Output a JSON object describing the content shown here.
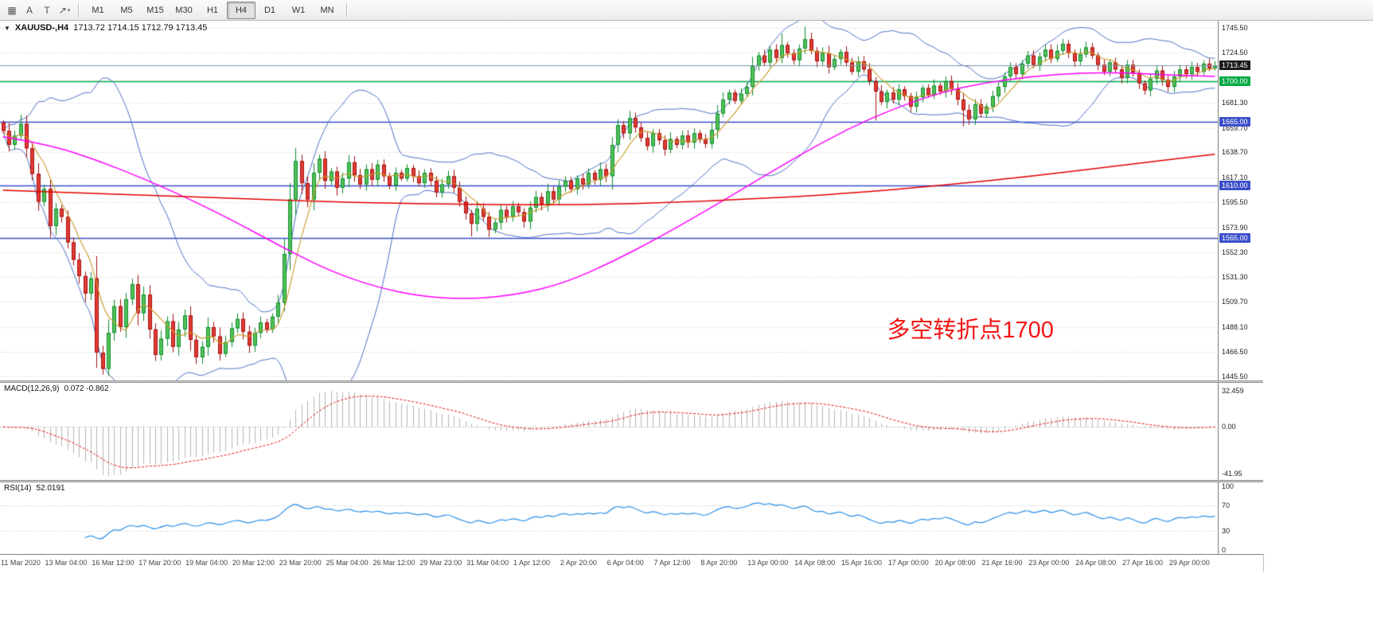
{
  "toolbar": {
    "icons": [
      {
        "name": "chart-windows-icon",
        "glyph": "▦"
      },
      {
        "name": "font-tool-icon",
        "glyph": "A"
      },
      {
        "name": "text-cursor-icon",
        "glyph": "T"
      },
      {
        "name": "line-style-icon",
        "glyph": "↗",
        "caret": "▾"
      }
    ],
    "timeframes": [
      {
        "label": "M1",
        "active": false
      },
      {
        "label": "M5",
        "active": false
      },
      {
        "label": "M15",
        "active": false
      },
      {
        "label": "M30",
        "active": false
      },
      {
        "label": "H1",
        "active": false
      },
      {
        "label": "H4",
        "active": true
      },
      {
        "label": "D1",
        "active": false
      },
      {
        "label": "W1",
        "active": false
      },
      {
        "label": "MN",
        "active": false
      }
    ]
  },
  "chart": {
    "dropdown_glyph": "▼",
    "title": "XAUUSD-,H4",
    "ohlc": "1713.72 1714.15 1712.79 1713.45",
    "annotation": {
      "text": "多空转折点1700",
      "color": "#f21515",
      "x_index": 151,
      "price": 1491
    },
    "price_axis": {
      "labels": [
        {
          "text": "1745.50",
          "price": 1745.5
        },
        {
          "text": "1724.50",
          "price": 1724.5
        },
        {
          "text": "1681.30",
          "price": 1681.3
        },
        {
          "text": "1659.70",
          "price": 1659.7
        },
        {
          "text": "1638.70",
          "price": 1638.7
        },
        {
          "text": "1617.10",
          "price": 1617.1
        },
        {
          "text": "1595.50",
          "price": 1595.5
        },
        {
          "text": "1573.90",
          "price": 1573.9
        },
        {
          "text": "1552.30",
          "price": 1552.3
        },
        {
          "text": "1531.30",
          "price": 1531.3
        },
        {
          "text": "1509.70",
          "price": 1509.7
        },
        {
          "text": "1488.10",
          "price": 1488.1
        },
        {
          "text": "1466.50",
          "price": 1466.5
        },
        {
          "text": "1445.50",
          "price": 1445.5
        }
      ],
      "badges": [
        {
          "text": "1713.45",
          "price": 1713.45,
          "bg": "#1a1a1a",
          "fg": "#ffffff",
          "type": "bid"
        },
        {
          "text": "1700.00",
          "price": 1700.0,
          "bg": "#00a843",
          "fg": "#ffffff",
          "type": "level"
        },
        {
          "text": "1665.00",
          "price": 1665.0,
          "bg": "#3b4fc9",
          "fg": "#ffffff",
          "type": "level"
        },
        {
          "text": "1610.00",
          "price": 1610.0,
          "bg": "#3b4fc9",
          "fg": "#ffffff",
          "type": "level"
        },
        {
          "text": "1565.00",
          "price": 1565.0,
          "bg": "#3b4fc9",
          "fg": "#ffffff",
          "type": "level"
        }
      ]
    }
  },
  "macd": {
    "label": "MACD(12,26,9)",
    "values": "0.072 -0.862",
    "axis": [
      {
        "text": "32.459",
        "value": 32.459
      },
      {
        "text": "0.00",
        "value": 0
      },
      {
        "text": "-41.95",
        "value": -41.95
      }
    ]
  },
  "rsi": {
    "label": "RSI(14)",
    "value": "52.0191",
    "axis": [
      {
        "text": "100",
        "value": 100
      },
      {
        "text": "70",
        "value": 70
      },
      {
        "text": "30",
        "value": 30
      },
      {
        "text": "0",
        "value": 0
      }
    ],
    "levels": [
      70,
      30
    ]
  },
  "time_axis": {
    "tick_step": 8,
    "labels": [
      "11 Mar 2020",
      "13 Mar 04:00",
      "16 Mar 12:00",
      "17 Mar 20:00",
      "19 Mar 04:00",
      "20 Mar 12:00",
      "23 Mar 20:00",
      "25 Mar 04:00",
      "26 Mar 12:00",
      "29 Mar 23:00",
      "31 Mar 04:00",
      "1 Apr 12:00",
      "2 Apr 20:00",
      "6 Apr 04:00",
      "7 Apr 12:00",
      "8 Apr 20:00",
      "13 Apr 00:00",
      "14 Apr 08:00",
      "15 Apr 16:00",
      "17 Apr 00:00",
      "20 Apr 08:00",
      "21 Apr 16:00",
      "23 Apr 00:00",
      "24 Apr 08:00",
      "27 Apr 16:00",
      "29 Apr 00:00"
    ]
  },
  "chart_data": {
    "type": "candlestick",
    "symbol": "XAUUSD-",
    "period": "H4",
    "ohlc_display": {
      "open": 1713.72,
      "high": 1714.15,
      "low": 1712.79,
      "close": 1713.45
    },
    "price_range": [
      1442,
      1752
    ],
    "first_open": 1664,
    "wick_seed": 7,
    "closes": [
      1657,
      1645,
      1653,
      1663,
      1642,
      1620,
      1596,
      1607,
      1575,
      1590,
      1583,
      1561,
      1546,
      1532,
      1517,
      1530,
      1466,
      1452,
      1483,
      1506,
      1488,
      1512,
      1525,
      1500,
      1516,
      1486,
      1464,
      1478,
      1493,
      1471,
      1486,
      1498,
      1477,
      1462,
      1471,
      1488,
      1480,
      1465,
      1475,
      1487,
      1495,
      1484,
      1472,
      1483,
      1492,
      1486,
      1497,
      1509,
      1551,
      1598,
      1631,
      1612,
      1598,
      1621,
      1633,
      1614,
      1622,
      1608,
      1616,
      1630,
      1619,
      1611,
      1624,
      1615,
      1628,
      1618,
      1610,
      1621,
      1616,
      1625,
      1618,
      1612,
      1621,
      1614,
      1604,
      1611,
      1618,
      1608,
      1596,
      1586,
      1577,
      1590,
      1583,
      1572,
      1578,
      1589,
      1583,
      1592,
      1587,
      1579,
      1591,
      1600,
      1593,
      1605,
      1598,
      1609,
      1614,
      1607,
      1616,
      1611,
      1621,
      1615,
      1624,
      1618,
      1645,
      1662,
      1655,
      1668,
      1660,
      1651,
      1644,
      1655,
      1649,
      1641,
      1650,
      1645,
      1653,
      1647,
      1655,
      1650,
      1646,
      1658,
      1672,
      1684,
      1690,
      1683,
      1689,
      1695,
      1713,
      1722,
      1716,
      1727,
      1720,
      1731,
      1724,
      1718,
      1728,
      1736,
      1726,
      1717,
      1724,
      1712,
      1719,
      1725,
      1716,
      1708,
      1717,
      1710,
      1700,
      1691,
      1682,
      1690,
      1684,
      1693,
      1687,
      1678,
      1686,
      1694,
      1688,
      1696,
      1691,
      1700,
      1693,
      1684,
      1675,
      1667,
      1680,
      1672,
      1678,
      1687,
      1695,
      1704,
      1712,
      1706,
      1715,
      1722,
      1714,
      1721,
      1727,
      1719,
      1726,
      1732,
      1724,
      1717,
      1723,
      1729,
      1722,
      1714,
      1708,
      1716,
      1710,
      1703,
      1714,
      1707,
      1698,
      1692,
      1702,
      1709,
      1701,
      1695,
      1704,
      1710,
      1706,
      1712,
      1708,
      1715,
      1711,
      1713.45
    ],
    "special_wicks": [
      {
        "i": 3,
        "high": 1671
      },
      {
        "i": 16,
        "low": 1453
      },
      {
        "i": 17,
        "low": 1447
      },
      {
        "i": 80,
        "low": 1566
      },
      {
        "i": 133,
        "high": 1741
      },
      {
        "i": 137,
        "high": 1747
      },
      {
        "i": 149,
        "low": 1666
      },
      {
        "i": 164,
        "low": 1661
      }
    ],
    "levels": [
      {
        "price": 1700.0,
        "color": "#00a843",
        "width": 1.6,
        "type": "hline"
      },
      {
        "price": 1665.0,
        "color": "#3b4fc9",
        "width": 1.4,
        "type": "hline"
      },
      {
        "price": 1610.0,
        "color": "#3b4fc9",
        "width": 1.4,
        "type": "hline"
      },
      {
        "price": 1565.0,
        "color": "#3b4fc9",
        "width": 1.4,
        "type": "hline"
      },
      {
        "price": 1713.45,
        "color": "#7d97ad",
        "width": 1,
        "type": "bid"
      }
    ],
    "overlays": {
      "bollinger": {
        "period": 20,
        "deviation": 2,
        "color": "#4a6fc3"
      },
      "ma_gold": {
        "period": 6,
        "color": "#c89b28"
      },
      "ma_magenta": {
        "color": "#ff00ff",
        "points": [
          [
            0,
            1652
          ],
          [
            8,
            1645
          ],
          [
            16,
            1632
          ],
          [
            24,
            1616
          ],
          [
            32,
            1598
          ],
          [
            40,
            1578
          ],
          [
            48,
            1556
          ],
          [
            56,
            1536
          ],
          [
            64,
            1522
          ],
          [
            72,
            1514
          ],
          [
            80,
            1512
          ],
          [
            88,
            1516
          ],
          [
            96,
            1526
          ],
          [
            104,
            1544
          ],
          [
            112,
            1565
          ],
          [
            120,
            1588
          ],
          [
            128,
            1612
          ],
          [
            136,
            1636
          ],
          [
            144,
            1658
          ],
          [
            152,
            1676
          ],
          [
            160,
            1690
          ],
          [
            168,
            1699
          ],
          [
            176,
            1704
          ],
          [
            184,
            1707
          ],
          [
            192,
            1707
          ],
          [
            200,
            1705
          ],
          [
            207,
            1704
          ]
        ]
      },
      "ma_red": {
        "color": "#e00000",
        "points": [
          [
            0,
            1606
          ],
          [
            24,
            1602
          ],
          [
            48,
            1597
          ],
          [
            72,
            1594
          ],
          [
            96,
            1593
          ],
          [
            120,
            1596
          ],
          [
            144,
            1603
          ],
          [
            160,
            1610
          ],
          [
            176,
            1618
          ],
          [
            192,
            1628
          ],
          [
            207,
            1637
          ]
        ]
      }
    },
    "indicators": {
      "macd": {
        "fast": 12,
        "slow": 26,
        "signal": 9,
        "range": [
          -48,
          40
        ]
      },
      "rsi": {
        "period": 14,
        "range": [
          -6,
          106
        ]
      }
    },
    "style": {
      "up_fill": "#53c258",
      "up_border": "#0d8c2f",
      "down_fill": "#e23b34",
      "down_border": "#a31111",
      "grid": "#cfcfcf",
      "macd_bar": "#b4b4b4",
      "macd_signal": "#e00000",
      "rsi_line": "#2a8fe8",
      "rsi_level": "#c0c0c0"
    }
  }
}
